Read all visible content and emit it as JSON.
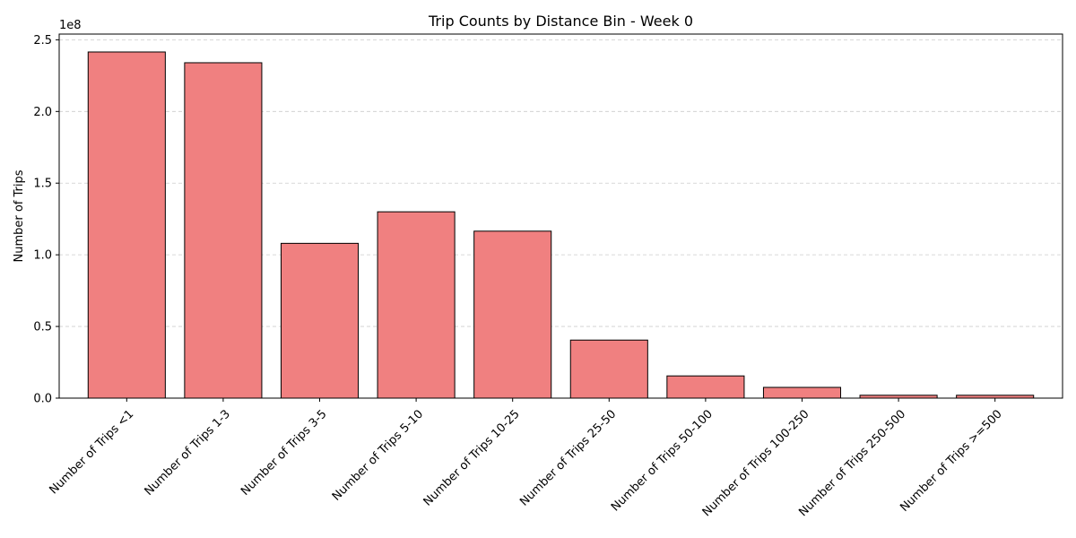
{
  "chart_data": {
    "type": "bar",
    "title": "Trip Counts by Distance Bin - Week 0",
    "xlabel": "",
    "ylabel": "Number of Trips",
    "y_offset_label": "1e8",
    "categories": [
      "Number of Trips <1",
      "Number of Trips 1-3",
      "Number of Trips 3-5",
      "Number of Trips 5-10",
      "Number of Trips 10-25",
      "Number of Trips 25-50",
      "Number of Trips 50-100",
      "Number of Trips 100-250",
      "Number of Trips 250-500",
      "Number of Trips >=500"
    ],
    "values": [
      241500000,
      234000000,
      108000000,
      130000000,
      116500000,
      40500000,
      15500000,
      7500000,
      2000000,
      2000000
    ],
    "ylim": [
      0,
      254000000
    ],
    "yticks": [
      0,
      50000000,
      100000000,
      150000000,
      200000000,
      250000000
    ],
    "ytick_labels": [
      "0.0",
      "0.5",
      "1.0",
      "1.5",
      "2.0",
      "2.5"
    ],
    "grid": "y-dashed",
    "colors": {
      "bar_fill": "#f08080",
      "bar_edge": "#000000",
      "grid": "#cccccc"
    }
  }
}
